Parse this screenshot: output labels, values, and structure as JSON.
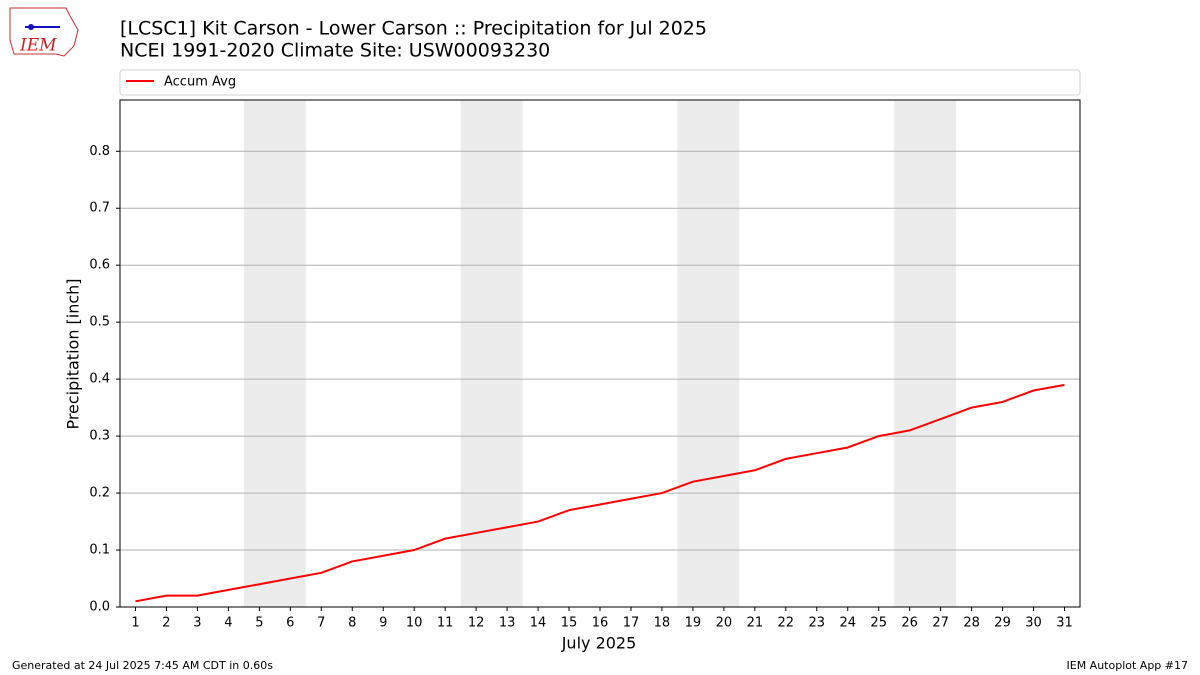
{
  "logo": "IEM",
  "chart_data": {
    "type": "line",
    "title": "[LCSC1] Kit Carson - Lower Carson :: Precipitation for Jul 2025",
    "subtitle": "NCEI 1991-2020 Climate Site: USW00093230",
    "xlabel": "July 2025",
    "ylabel": "Precipitation [inch]",
    "x": [
      1,
      2,
      3,
      4,
      5,
      6,
      7,
      8,
      9,
      10,
      11,
      12,
      13,
      14,
      15,
      16,
      17,
      18,
      19,
      20,
      21,
      22,
      23,
      24,
      25,
      26,
      27,
      28,
      29,
      30,
      31
    ],
    "series": [
      {
        "name": "Accum Avg",
        "color": "#ff0000",
        "values": [
          0.01,
          0.02,
          0.02,
          0.03,
          0.04,
          0.05,
          0.06,
          0.08,
          0.09,
          0.1,
          0.12,
          0.13,
          0.14,
          0.15,
          0.17,
          0.18,
          0.19,
          0.2,
          0.22,
          0.23,
          0.24,
          0.26,
          0.27,
          0.28,
          0.3,
          0.31,
          0.33,
          0.35,
          0.36,
          0.38,
          0.39
        ]
      }
    ],
    "shaded_spans": [
      [
        4.5,
        6.5
      ],
      [
        11.5,
        13.5
      ],
      [
        18.5,
        20.5
      ],
      [
        25.5,
        27.5
      ]
    ],
    "shade_color": "#ececec",
    "xlim": [
      0.5,
      31.5
    ],
    "xticks": [
      1,
      2,
      3,
      4,
      5,
      6,
      7,
      8,
      9,
      10,
      11,
      12,
      13,
      14,
      15,
      16,
      17,
      18,
      19,
      20,
      21,
      22,
      23,
      24,
      25,
      26,
      27,
      28,
      29,
      30,
      31
    ],
    "ylim": [
      0,
      0.89
    ],
    "yticks": [
      {
        "value": 0,
        "label": "0.0"
      },
      0.1,
      0.2,
      0.3,
      0.4,
      0.5,
      0.6,
      0.7,
      0.8
    ],
    "grid": true,
    "legend": "top",
    "footer_left": "Generated at 24 Jul 2025 7:45 AM CDT in 0.60s",
    "footer_right": "IEM Autoplot App #17"
  }
}
